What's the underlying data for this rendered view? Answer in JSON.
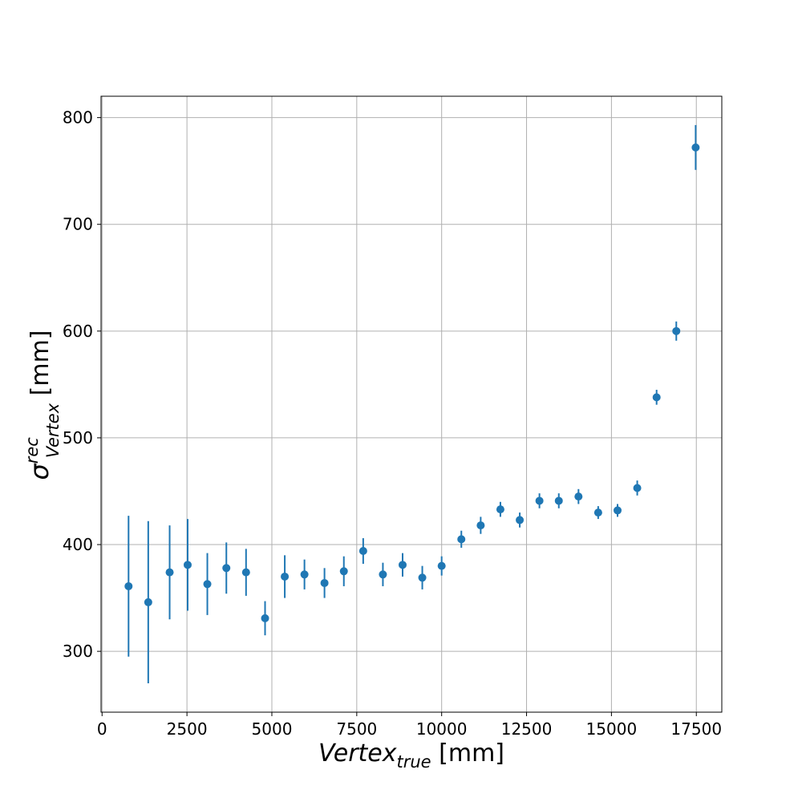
{
  "colors": {
    "series": "#1f77b4",
    "grid": "#b0b0b0",
    "axis": "#000000"
  },
  "chart_data": {
    "type": "scatter",
    "title": "",
    "xlabel": {
      "main": "Vertex",
      "sub": "true",
      "unit": " [mm]"
    },
    "ylabel": {
      "main": "σ",
      "sup": "rec",
      "sub": "Vertex",
      "unit": "  [mm]"
    },
    "xlim": [
      -30,
      18250
    ],
    "ylim": [
      243,
      820
    ],
    "grid": true,
    "xticks": [
      0,
      2500,
      5000,
      7500,
      10000,
      12500,
      15000,
      17500
    ],
    "xtick_labels": [
      "0",
      "2500",
      "5000",
      "7500",
      "10000",
      "12500",
      "15000",
      "17500"
    ],
    "yticks": [
      300,
      400,
      500,
      600,
      700,
      800
    ],
    "ytick_labels": [
      "300",
      "400",
      "500",
      "600",
      "700",
      "800"
    ],
    "series": [
      {
        "x": [
          780,
          1360,
          1990,
          2520,
          3100,
          3660,
          4240,
          4800,
          5380,
          5960,
          6550,
          7120,
          7690,
          8270,
          8850,
          9430,
          10000,
          10580,
          11150,
          11730,
          12300,
          12880,
          13450,
          14030,
          14610,
          15180,
          15760,
          16330,
          16910,
          17480
        ],
        "y": [
          361,
          346,
          374,
          381,
          363,
          378,
          374,
          331,
          370,
          372,
          364,
          375,
          394,
          372,
          381,
          369,
          380,
          405,
          418,
          433,
          423,
          441,
          441,
          445,
          430,
          432,
          453,
          538,
          600,
          772
        ],
        "err": [
          66,
          76,
          44,
          43,
          29,
          24,
          22,
          16,
          20,
          14,
          14,
          14,
          12,
          11,
          11,
          11,
          9,
          8,
          8,
          7,
          7,
          7,
          7,
          7,
          6,
          6,
          7,
          7,
          9,
          21
        ]
      }
    ]
  }
}
